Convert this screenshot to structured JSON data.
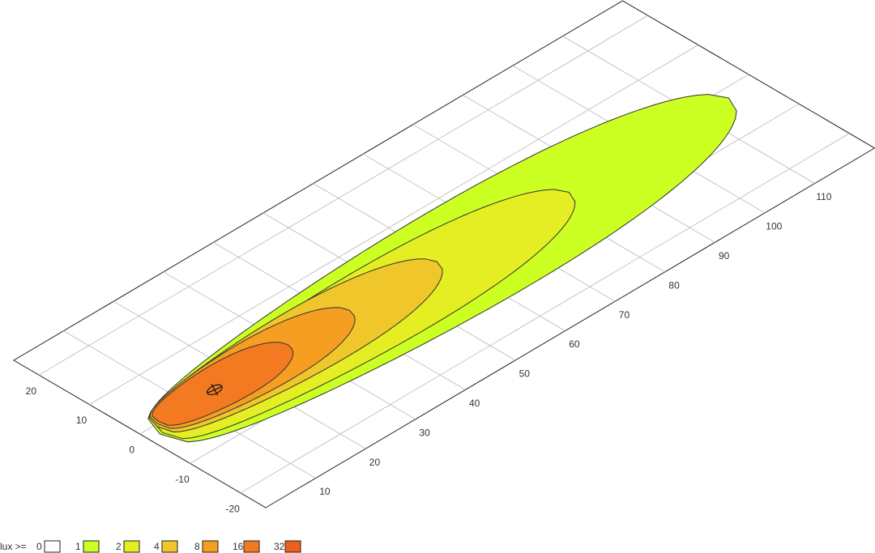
{
  "chart_data": {
    "type": "contour",
    "xlim": [
      0,
      122
    ],
    "ylim": [
      -25,
      25
    ],
    "xticks": [
      10,
      20,
      30,
      40,
      50,
      60,
      70,
      80,
      90,
      100,
      110
    ],
    "yticks": [
      -20,
      -10,
      0,
      10,
      20
    ],
    "grid": true,
    "legend_title": "lux >=",
    "levels": [
      0,
      1,
      2,
      4,
      8,
      16,
      32
    ],
    "colors": [
      "#ffffff",
      "#ccff22",
      "#e4ee22",
      "#efc72a",
      "#f59e22",
      "#f47a22",
      "#f05e1e"
    ]
  }
}
